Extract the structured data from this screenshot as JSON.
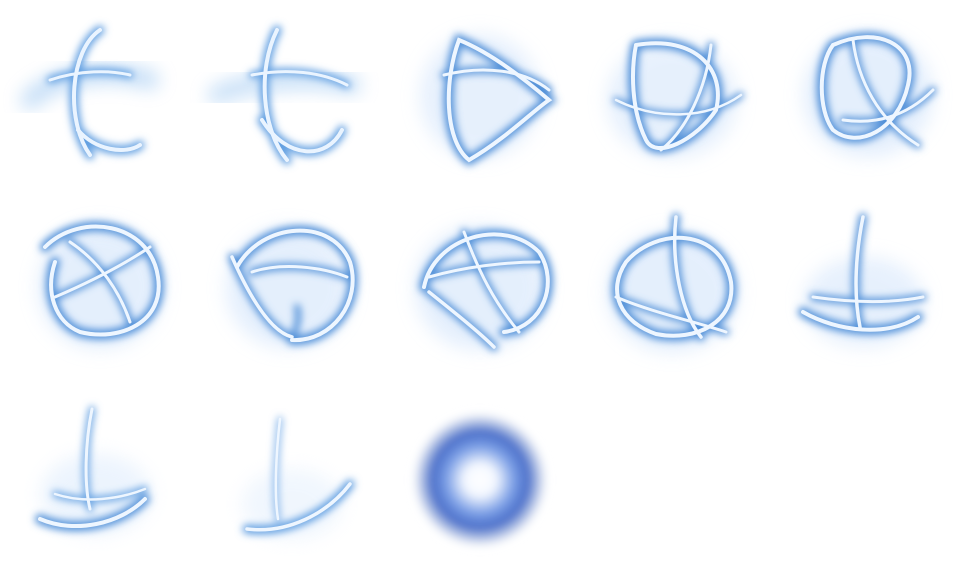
{
  "sprite_sheet": {
    "columns": 5,
    "rows": 3,
    "frame_count": 13,
    "colors": {
      "background": "#ffffff",
      "glow": "#6fa8e8",
      "ribbon_core": "#e9f3ff",
      "ribbon_edge": "#4f8fd8",
      "orb_outer": "#3f66c8",
      "orb_core": "#ffffff"
    },
    "frames": [
      {
        "id": 1,
        "icon": "energy-ribbon-sprite"
      },
      {
        "id": 2,
        "icon": "energy-ribbon-sprite"
      },
      {
        "id": 3,
        "icon": "energy-ribbon-sprite"
      },
      {
        "id": 4,
        "icon": "energy-ribbon-sprite"
      },
      {
        "id": 5,
        "icon": "energy-ribbon-sprite"
      },
      {
        "id": 6,
        "icon": "energy-ribbon-sprite"
      },
      {
        "id": 7,
        "icon": "energy-ribbon-sprite"
      },
      {
        "id": 8,
        "icon": "energy-ribbon-sprite"
      },
      {
        "id": 9,
        "icon": "energy-ribbon-sprite"
      },
      {
        "id": 10,
        "icon": "energy-ribbon-sprite"
      },
      {
        "id": 11,
        "icon": "energy-ribbon-sprite"
      },
      {
        "id": 12,
        "icon": "energy-ribbon-sprite"
      },
      {
        "id": 13,
        "icon": "glowing-orb-sprite"
      }
    ]
  }
}
